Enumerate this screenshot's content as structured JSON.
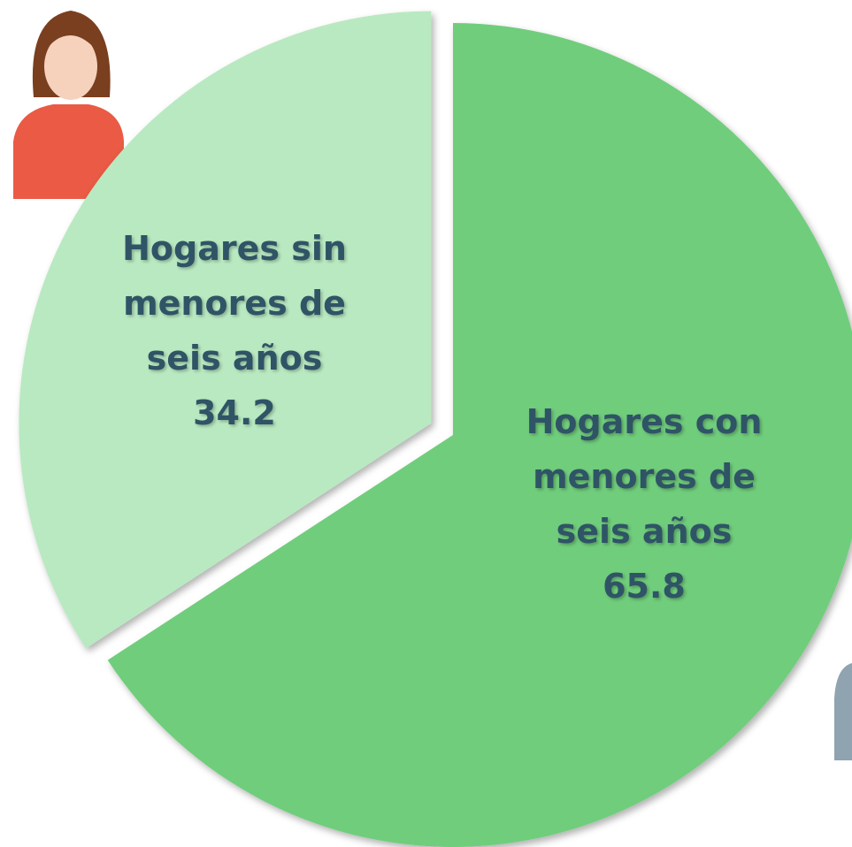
{
  "chart_data": {
    "type": "pie",
    "categories": [
      "Hogares con menores de seis años",
      "Hogares sin menores de seis años"
    ],
    "values": [
      65.8,
      34.2
    ],
    "colors": [
      "#6fcd7b",
      "#b9e9c1"
    ]
  }
}
